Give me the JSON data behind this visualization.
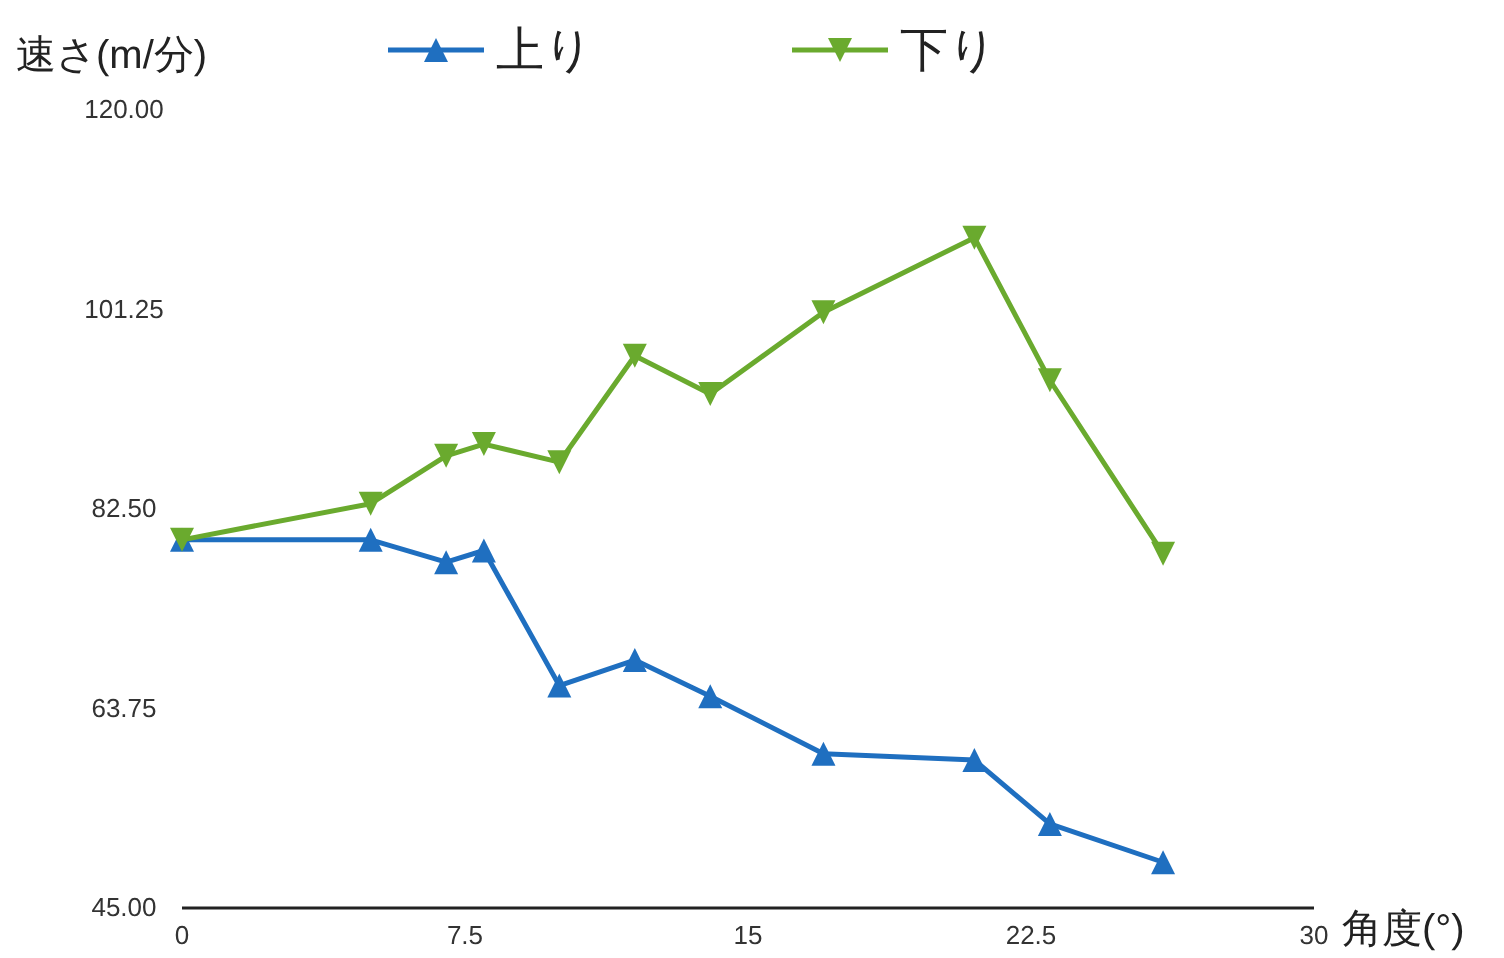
{
  "chart_data": {
    "type": "line",
    "ylabel": "速さ(m/分)",
    "xlabel": "角度(°)",
    "legend": "top",
    "grid": false,
    "line_style": "solid",
    "xlim": [
      0,
      30
    ],
    "xticks": [
      0,
      7.5,
      15,
      22.5,
      30
    ],
    "ylim": [
      45,
      120
    ],
    "yticks": [
      {
        "value": 45,
        "label": "45.00"
      },
      {
        "value": 63.75,
        "label": "63.75"
      },
      {
        "value": 82.5,
        "label": "82.50"
      },
      {
        "value": 101.25,
        "label": "101.25"
      },
      {
        "value": 120,
        "label": "120.00"
      }
    ],
    "x": [
      0,
      5,
      7,
      8,
      10,
      12,
      14,
      17,
      21,
      23,
      26
    ],
    "series": [
      {
        "name": "上り",
        "color": "#1f6fc0",
        "marker": "triangle",
        "values": [
          79.6,
          79.6,
          77.5,
          78.6,
          65.9,
          68.3,
          64.9,
          59.5,
          58.9,
          52.9,
          49.3
        ]
      },
      {
        "name": "下り",
        "color": "#6aaa2e",
        "marker": "triangle",
        "values": [
          79.6,
          83.0,
          87.5,
          88.6,
          86.9,
          96.9,
          93.3,
          101.0,
          108.0,
          94.6,
          78.3
        ]
      }
    ]
  }
}
